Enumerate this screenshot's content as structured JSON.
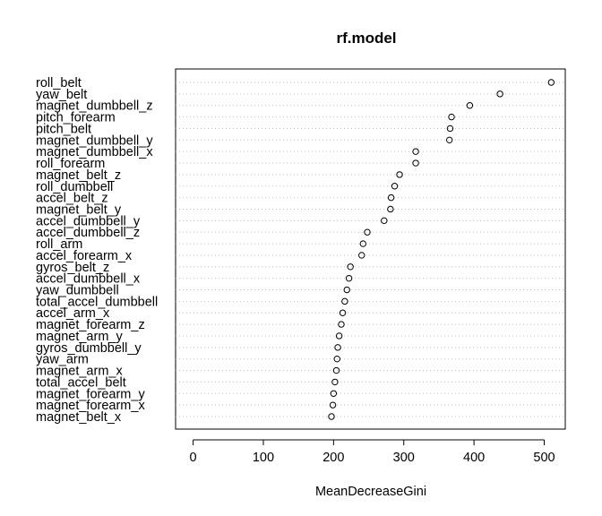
{
  "chart_data": {
    "type": "scatter",
    "title": "rf.model",
    "xlabel": "MeanDecreaseGini",
    "ylabel": "",
    "xlim": [
      -25,
      530
    ],
    "xticks": [
      0,
      100,
      200,
      300,
      400,
      500
    ],
    "tick_labels": [
      "0",
      "100",
      "200",
      "300",
      "400",
      "500"
    ],
    "grid": "dotted horizontal",
    "marker": "open-circle",
    "variables": [
      "roll_belt",
      "yaw_belt",
      "magnet_dumbbell_z",
      "pitch_forearm",
      "pitch_belt",
      "magnet_dumbbell_y",
      "magnet_dumbbell_x",
      "roll_forearm",
      "magnet_belt_z",
      "roll_dumbbell",
      "accel_belt_z",
      "magnet_belt_y",
      "accel_dumbbell_y",
      "accel_dumbbell_z",
      "roll_arm",
      "accel_forearm_x",
      "gyros_belt_z",
      "accel_dumbbell_x",
      "yaw_dumbbell",
      "total_accel_dumbbell",
      "accel_arm_x",
      "magnet_forearm_z",
      "magnet_arm_y",
      "gyros_dumbbell_y",
      "yaw_arm",
      "magnet_arm_x",
      "total_accel_belt",
      "magnet_forearm_y",
      "magnet_forearm_x",
      "magnet_belt_x"
    ],
    "values": [
      510,
      437,
      394,
      368,
      366,
      365,
      317,
      317,
      294,
      287,
      282,
      281,
      272,
      248,
      242,
      240,
      224,
      222,
      219,
      216,
      213,
      211,
      208,
      206,
      205,
      204,
      202,
      200,
      199,
      197
    ]
  }
}
